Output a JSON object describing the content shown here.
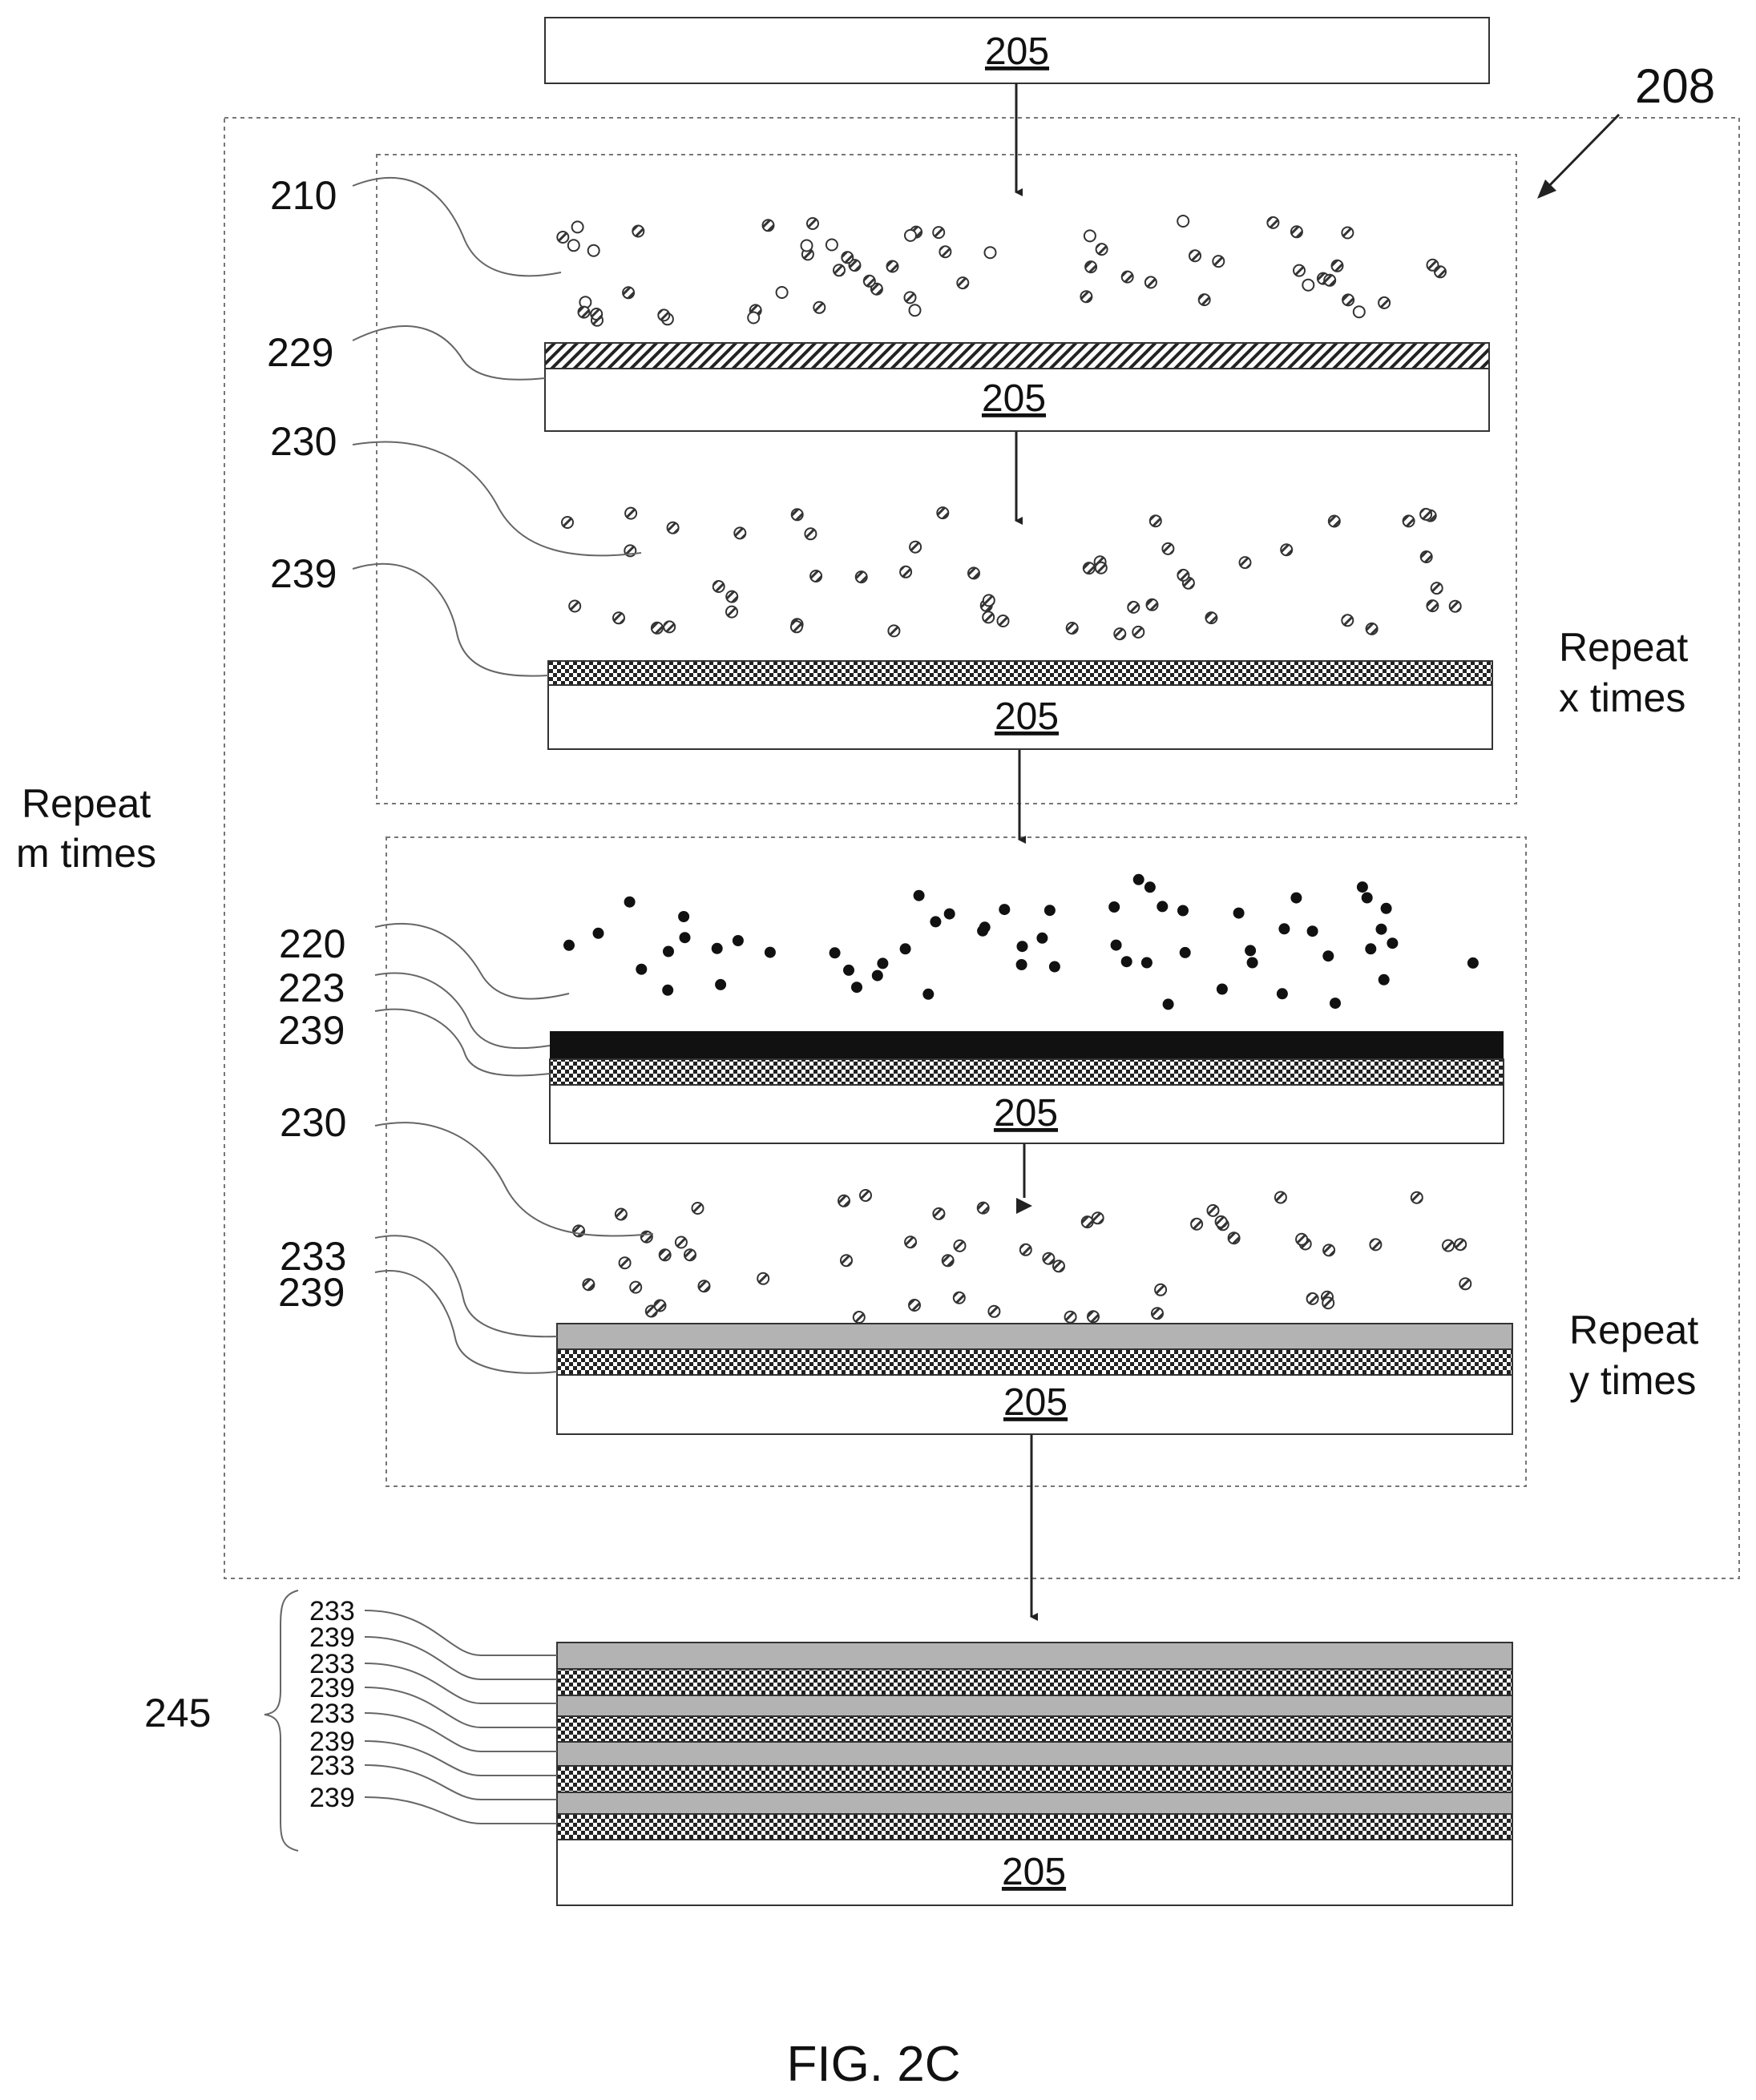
{
  "substrate_label": "205",
  "labels": {
    "outer_process": "208",
    "precursor_a": "210",
    "layer_a": "229",
    "reactant": "230",
    "layer_b": "239",
    "precursor_c": "220",
    "layer_c": "223",
    "layer_d": "233",
    "stack": "245"
  },
  "repeat": {
    "x_line1": "Repeat",
    "x_line2": "x times",
    "y_line1": "Repeat",
    "y_line2": "y times",
    "m_line1": "Repeat",
    "m_line2": "m times"
  },
  "stack_labels": [
    "233",
    "239",
    "233",
    "239",
    "233",
    "239",
    "233",
    "239"
  ],
  "caption": "FIG. 2C",
  "colors": {
    "ink": "#111111",
    "grey_layer": "#b3b3b3",
    "black_layer": "#111111"
  }
}
